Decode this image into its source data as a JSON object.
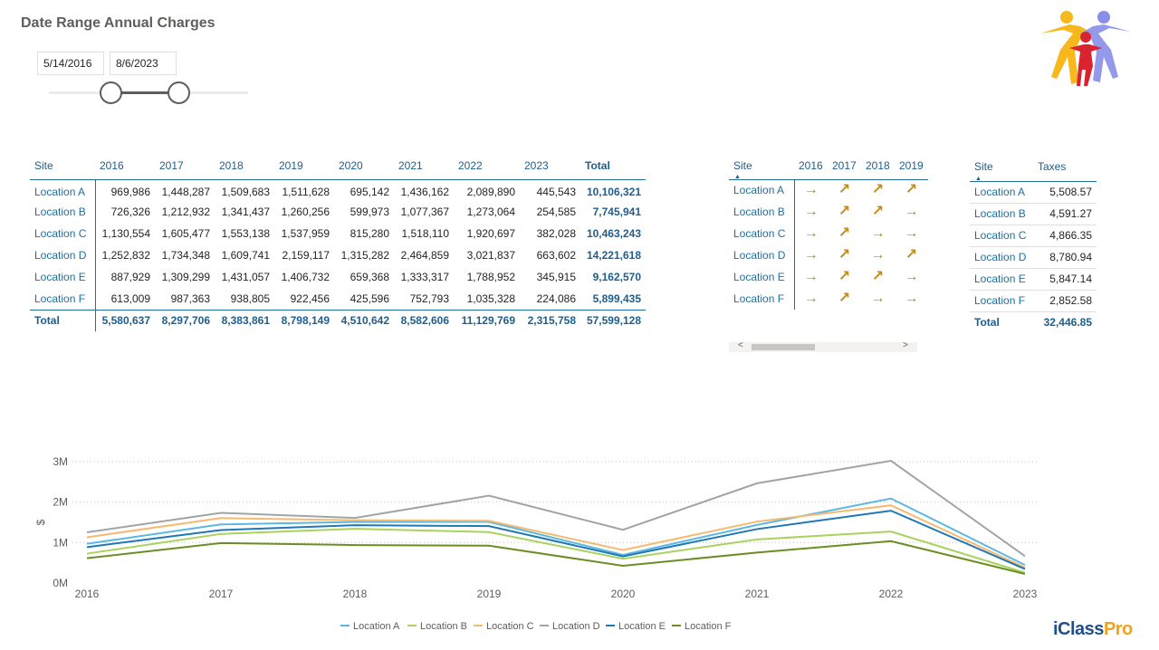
{
  "title": "Date Range Annual Charges",
  "slicer": {
    "start_date": "5/14/2016",
    "end_date": "8/6/2023",
    "range_start": 0.31,
    "range_end": 0.65
  },
  "brand": {
    "prefix": "iClass",
    "suffix": "Pro"
  },
  "matrix": {
    "headers": [
      "Site",
      "2016",
      "2017",
      "2018",
      "2019",
      "2020",
      "2021",
      "2022",
      "2023",
      "Total"
    ],
    "rows": [
      {
        "site": "Location A",
        "values": [
          "969,986",
          "1,448,287",
          "1,509,683",
          "1,511,628",
          "695,142",
          "1,436,162",
          "2,089,890",
          "445,543"
        ],
        "total": "10,106,321"
      },
      {
        "site": "Location B",
        "values": [
          "726,326",
          "1,212,932",
          "1,341,437",
          "1,260,256",
          "599,973",
          "1,077,367",
          "1,273,064",
          "254,585"
        ],
        "total": "7,745,941"
      },
      {
        "site": "Location C",
        "values": [
          "1,130,554",
          "1,605,477",
          "1,553,138",
          "1,537,959",
          "815,280",
          "1,518,110",
          "1,920,697",
          "382,028"
        ],
        "total": "10,463,243"
      },
      {
        "site": "Location D",
        "values": [
          "1,252,832",
          "1,734,348",
          "1,609,741",
          "2,159,117",
          "1,315,282",
          "2,464,859",
          "3,021,837",
          "663,602"
        ],
        "total": "14,221,618"
      },
      {
        "site": "Location E",
        "values": [
          "887,929",
          "1,309,299",
          "1,431,057",
          "1,406,732",
          "659,368",
          "1,333,317",
          "1,788,952",
          "345,915"
        ],
        "total": "9,162,570"
      },
      {
        "site": "Location F",
        "values": [
          "613,009",
          "987,363",
          "938,805",
          "922,456",
          "425,596",
          "752,793",
          "1,035,328",
          "224,086"
        ],
        "total": "5,899,435"
      }
    ],
    "total_row": {
      "site": "Total",
      "values": [
        "5,580,637",
        "8,297,706",
        "8,383,861",
        "8,798,149",
        "4,510,642",
        "8,582,606",
        "11,129,769",
        "2,315,758"
      ],
      "total": "57,599,128"
    }
  },
  "trend": {
    "headers": [
      "Site",
      "2016",
      "2017",
      "2018",
      "2019"
    ],
    "rows": [
      {
        "site": "Location A",
        "arrows": [
          "→",
          "↗",
          "↗",
          "↗"
        ]
      },
      {
        "site": "Location B",
        "arrows": [
          "→",
          "↗",
          "↗",
          "→"
        ]
      },
      {
        "site": "Location C",
        "arrows": [
          "→",
          "↗",
          "→",
          "→"
        ]
      },
      {
        "site": "Location D",
        "arrows": [
          "→",
          "↗",
          "→",
          "↗"
        ]
      },
      {
        "site": "Location E",
        "arrows": [
          "→",
          "↗",
          "↗",
          "→"
        ]
      },
      {
        "site": "Location F",
        "arrows": [
          "→",
          "↗",
          "→",
          "→"
        ]
      }
    ],
    "scroll_left": "<",
    "scroll_right": ">"
  },
  "taxes": {
    "headers": [
      "Site",
      "Taxes"
    ],
    "rows": [
      {
        "site": "Location A",
        "value": "5,508.57"
      },
      {
        "site": "Location B",
        "value": "4,591.27"
      },
      {
        "site": "Location C",
        "value": "4,866.35"
      },
      {
        "site": "Location D",
        "value": "8,780.94"
      },
      {
        "site": "Location E",
        "value": "5,847.14"
      },
      {
        "site": "Location F",
        "value": "2,852.58"
      }
    ],
    "total_row": {
      "site": "Total",
      "value": "32,446.85"
    }
  },
  "chart_data": {
    "type": "line",
    "x": [
      "2016",
      "2017",
      "2018",
      "2019",
      "2020",
      "2021",
      "2022",
      "2023"
    ],
    "ylabel": "$",
    "ylim": [
      0,
      3000000
    ],
    "yticks": [
      0,
      1000000,
      2000000,
      3000000
    ],
    "ytick_labels": [
      "0M",
      "1M",
      "2M",
      "3M"
    ],
    "grid": true,
    "legend": "bottom",
    "series": [
      {
        "name": "Location A",
        "color": "#5bb8e3",
        "values": [
          969986,
          1448287,
          1509683,
          1511628,
          695142,
          1436162,
          2089890,
          445543
        ]
      },
      {
        "name": "Location B",
        "color": "#a9d25f",
        "values": [
          726326,
          1212932,
          1341437,
          1260256,
          599973,
          1077367,
          1273064,
          254585
        ]
      },
      {
        "name": "Location C",
        "color": "#f5b970",
        "values": [
          1130554,
          1605477,
          1553138,
          1537959,
          815280,
          1518110,
          1920697,
          382028
        ]
      },
      {
        "name": "Location D",
        "color": "#a0a4a6",
        "values": [
          1252832,
          1734348,
          1609741,
          2159117,
          1315282,
          2464859,
          3021837,
          663602
        ]
      },
      {
        "name": "Location E",
        "color": "#1f77b4",
        "values": [
          887929,
          1309299,
          1431057,
          1406732,
          659368,
          1333317,
          1788952,
          345915
        ]
      },
      {
        "name": "Location F",
        "color": "#6b8e23",
        "values": [
          613009,
          987363,
          938805,
          922456,
          425596,
          752793,
          1035328,
          224086
        ]
      }
    ]
  }
}
